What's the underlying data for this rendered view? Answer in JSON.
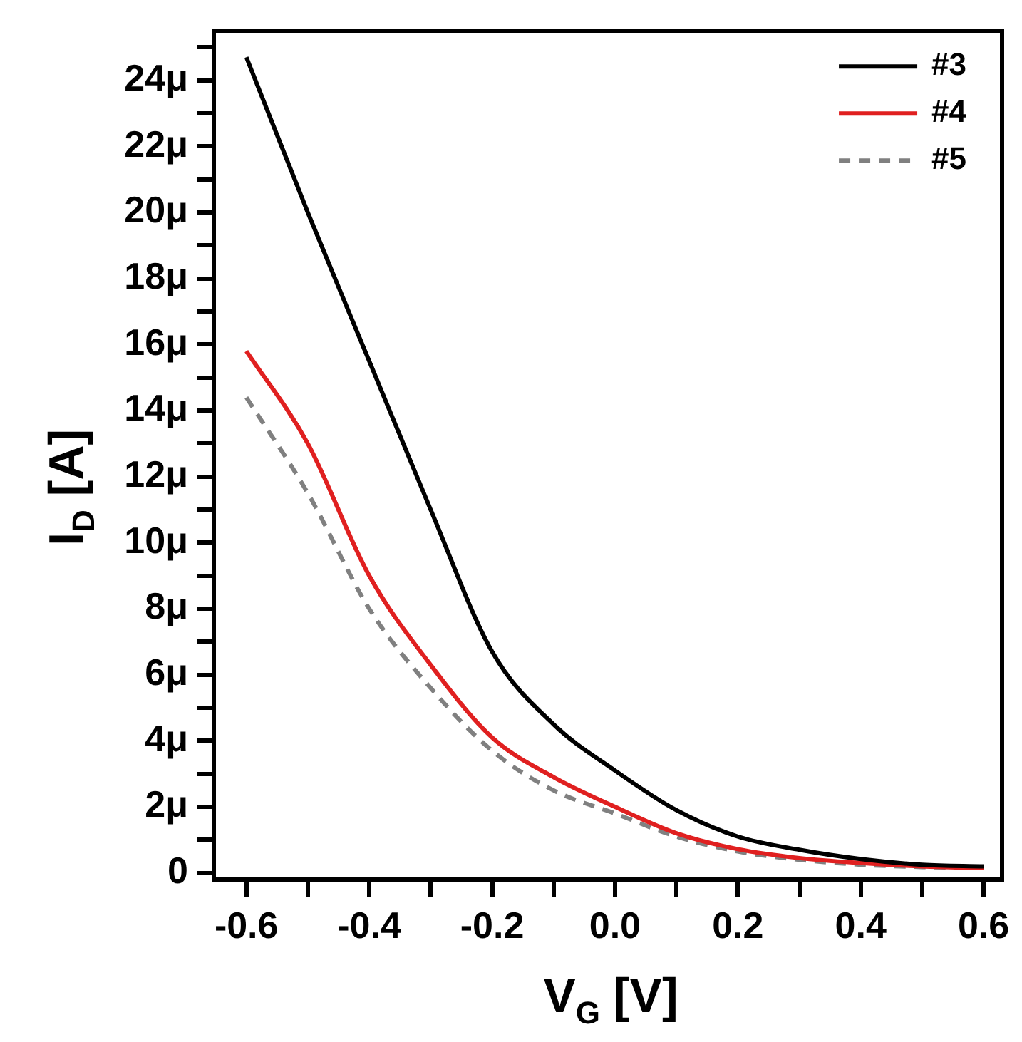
{
  "chart_data": {
    "type": "line",
    "xlabel": "V$_{G}$ [V]",
    "ylabel": "I$_{D}$ [A]",
    "x": [
      -0.6,
      -0.5,
      -0.4,
      -0.3,
      -0.2,
      -0.1,
      0,
      0.1,
      0.2,
      0.3,
      0.4,
      0.5,
      0.6
    ],
    "series": [
      {
        "name": "#3",
        "color": "#000000",
        "line_style": "solid",
        "values": [
          24.7,
          20,
          15.5,
          11,
          6.7,
          4.5,
          3.1,
          1.9,
          1.1,
          0.7,
          0.42,
          0.25,
          0.2
        ]
      },
      {
        "name": "#4",
        "color": "#e02020",
        "line_style": "solid",
        "values": [
          15.8,
          13,
          9,
          6.3,
          4.1,
          2.9,
          2,
          1.2,
          0.72,
          0.45,
          0.3,
          0.2,
          0.15
        ]
      },
      {
        "name": "#5",
        "color": "#808080",
        "line_style": "dashed",
        "values": [
          14.4,
          11.5,
          8,
          5.6,
          3.7,
          2.5,
          1.8,
          1.1,
          0.65,
          0.4,
          0.25,
          0.18,
          0.15
        ]
      }
    ],
    "xlim": [
      -0.653,
      0.63
    ],
    "ylim": [
      -0.2,
      25.5
    ],
    "xticks": [
      -0.6,
      {
        "value": -0.5,
        "label": null
      },
      -0.4,
      {
        "value": -0.3,
        "label": null
      },
      -0.2,
      {
        "value": -0.1,
        "label": null
      },
      {
        "value": 0,
        "label": "0.0"
      },
      {
        "value": 0.1,
        "label": null
      },
      0.2,
      {
        "value": 0.3,
        "label": null
      },
      0.4,
      {
        "value": 0.5,
        "label": null
      },
      0.6
    ],
    "yticks": [
      0,
      {
        "value": 1,
        "label": null
      },
      {
        "value": 2,
        "label": "2μ"
      },
      {
        "value": 3,
        "label": null
      },
      {
        "value": 4,
        "label": "4μ"
      },
      {
        "value": 5,
        "label": null
      },
      {
        "value": 6,
        "label": "6μ"
      },
      {
        "value": 7,
        "label": null
      },
      {
        "value": 8,
        "label": "8μ"
      },
      {
        "value": 9,
        "label": null
      },
      {
        "value": 10,
        "label": "10μ"
      },
      {
        "value": 11,
        "label": null
      },
      {
        "value": 12,
        "label": "12μ"
      },
      {
        "value": 13,
        "label": null
      },
      {
        "value": 14,
        "label": "14μ"
      },
      {
        "value": 15,
        "label": null
      },
      {
        "value": 16,
        "label": "16μ"
      },
      {
        "value": 17,
        "label": null
      },
      {
        "value": 18,
        "label": "18μ"
      },
      {
        "value": 19,
        "label": null
      },
      {
        "value": 20,
        "label": "20μ"
      },
      {
        "value": 21,
        "label": null
      },
      {
        "value": 22,
        "label": "22μ"
      },
      {
        "value": 23,
        "label": null
      },
      {
        "value": 24,
        "label": "24μ"
      },
      {
        "value": 25,
        "label": null
      }
    ],
    "grid": false,
    "legend": "top right",
    "marker": "none"
  }
}
